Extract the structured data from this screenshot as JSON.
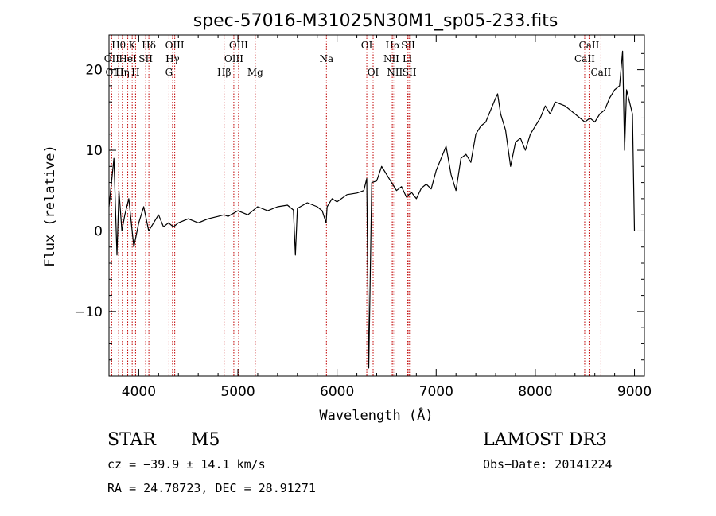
{
  "chart_data": {
    "type": "line",
    "title": "spec-57016-M31025N30M1_sp05-233.fits",
    "xlabel": "Wavelength (Å)",
    "ylabel": "Flux (relative)",
    "xlim": [
      3700,
      9100
    ],
    "ylim": [
      -18,
      24.3
    ],
    "xticks": [
      4000,
      5000,
      6000,
      7000,
      8000,
      9000
    ],
    "yticks": [
      -10,
      0,
      10,
      20
    ],
    "grid": false,
    "series": [
      {
        "name": "spectrum",
        "x": [
          3700,
          3750,
          3780,
          3800,
          3830,
          3860,
          3900,
          3950,
          4000,
          4050,
          4100,
          4150,
          4200,
          4250,
          4300,
          4350,
          4400,
          4500,
          4600,
          4700,
          4800,
          4860,
          4900,
          5000,
          5100,
          5200,
          5300,
          5400,
          5500,
          5560,
          5580,
          5600,
          5700,
          5800,
          5850,
          5890,
          5900,
          5950,
          6000,
          6100,
          6200,
          6270,
          6300,
          6320,
          6350,
          6400,
          6450,
          6500,
          6550,
          6600,
          6650,
          6700,
          6750,
          6800,
          6850,
          6900,
          6950,
          7000,
          7050,
          7100,
          7150,
          7200,
          7250,
          7300,
          7350,
          7400,
          7450,
          7500,
          7550,
          7600,
          7620,
          7650,
          7700,
          7750,
          7800,
          7850,
          7900,
          7950,
          8000,
          8050,
          8100,
          8150,
          8200,
          8300,
          8400,
          8500,
          8550,
          8600,
          8650,
          8700,
          8750,
          8800,
          8850,
          8880,
          8900,
          8920,
          8950,
          8980,
          9000
        ],
        "y": [
          3,
          9,
          -3,
          5,
          0,
          2,
          4,
          -2,
          1,
          3,
          0,
          1,
          2,
          0.5,
          1,
          0.5,
          1,
          1.5,
          1,
          1.5,
          1.8,
          2,
          1.8,
          2.5,
          2,
          3,
          2.5,
          3,
          3.2,
          2.6,
          -3,
          2.8,
          3.5,
          3,
          2.5,
          1,
          3,
          4,
          3.6,
          4.5,
          4.7,
          5,
          6.5,
          -17,
          6,
          6.2,
          8,
          7,
          6,
          5,
          5.5,
          4.2,
          4.8,
          4,
          5.3,
          5.8,
          5.2,
          7.5,
          9,
          10.5,
          7,
          5,
          9,
          9.5,
          8.5,
          12,
          13,
          13.5,
          15,
          16.5,
          17,
          14.5,
          12.5,
          8,
          11,
          11.5,
          10,
          12,
          13,
          14,
          15.5,
          14.5,
          16,
          15.5,
          14.5,
          13.5,
          14,
          13.5,
          14.5,
          15,
          16.5,
          17.5,
          18,
          22.3,
          10,
          17.5,
          16,
          14.5,
          0
        ]
      }
    ],
    "lines": [
      {
        "label": "Hθ",
        "x": 3797,
        "row": 1
      },
      {
        "label": "OII",
        "x": 3727,
        "row": 2
      },
      {
        "label": "OIII",
        "x": 3760,
        "row": 3
      },
      {
        "label": "Hη",
        "x": 3835,
        "row": 3
      },
      {
        "label": "K",
        "x": 3934,
        "row": 1
      },
      {
        "label": "HeI",
        "x": 3889,
        "row": 2
      },
      {
        "label": "H",
        "x": 3968,
        "row": 3
      },
      {
        "label": "SII",
        "x": 4070,
        "row": 2
      },
      {
        "label": "Hδ",
        "x": 4102,
        "row": 1
      },
      {
        "label": "OIII",
        "x": 4363,
        "row": 1
      },
      {
        "label": "Hγ",
        "x": 4341,
        "row": 2
      },
      {
        "label": "G",
        "x": 4305,
        "row": 3
      },
      {
        "label": "Hβ",
        "x": 4861,
        "row": 3
      },
      {
        "label": "OIII",
        "x": 5007,
        "row": 1
      },
      {
        "label": "OIII",
        "x": 4959,
        "row": 2
      },
      {
        "label": "Mg",
        "x": 5175,
        "row": 3
      },
      {
        "label": "Na",
        "x": 5893,
        "row": 2
      },
      {
        "label": "OI",
        "x": 6300,
        "row": 1
      },
      {
        "label": "OI",
        "x": 6364,
        "row": 3
      },
      {
        "label": "Hα",
        "x": 6563,
        "row": 1
      },
      {
        "label": "SII",
        "x": 6717,
        "row": 1
      },
      {
        "label": "NII",
        "x": 6548,
        "row": 2
      },
      {
        "label": "Li",
        "x": 6708,
        "row": 2
      },
      {
        "label": "NII",
        "x": 6583,
        "row": 3
      },
      {
        "label": "SII",
        "x": 6731,
        "row": 3
      },
      {
        "label": "CaII",
        "x": 8542,
        "row": 1
      },
      {
        "label": "CaII",
        "x": 8498,
        "row": 2
      },
      {
        "label": "CaII",
        "x": 8662,
        "row": 3
      }
    ]
  },
  "info": {
    "class_label": "STAR",
    "subclass": "M5",
    "survey": "LAMOST DR3",
    "cz": "cz = −39.9 ± 14.1 km/s",
    "obs_date": "Obs−Date: 20141224",
    "coords": "RA =  24.78723, DEC =  28.91271"
  }
}
